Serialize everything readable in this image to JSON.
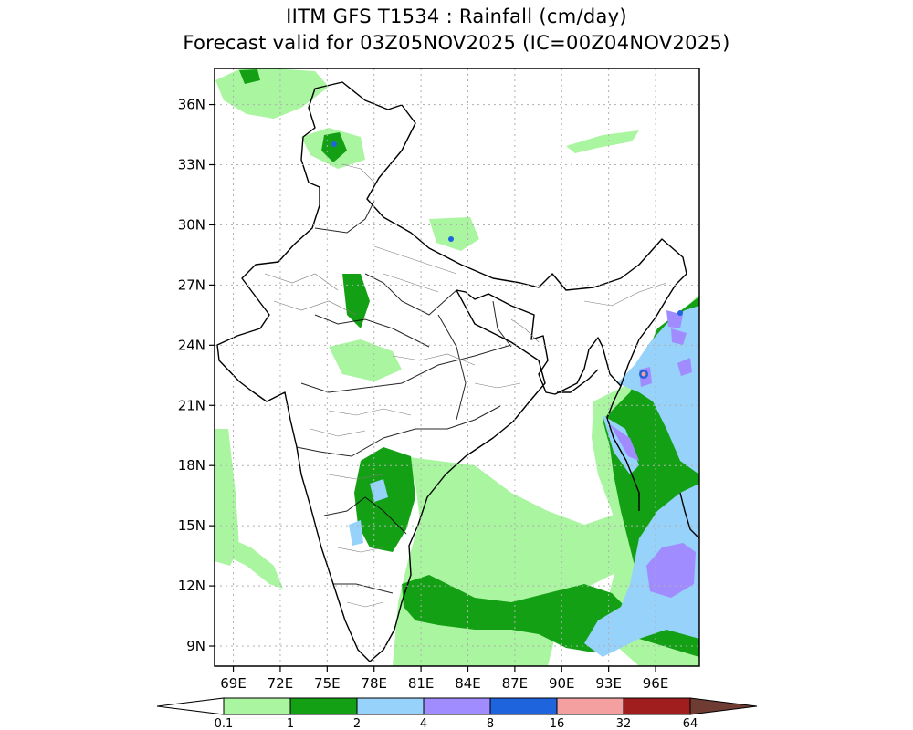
{
  "title": {
    "line1": "IITM GFS T1534 : Rainfall (cm/day)",
    "line2": "Forecast valid for 03Z05NOV2025 (IC=00Z04NOV2025)"
  },
  "map": {
    "lon_range": [
      67.8,
      98.8
    ],
    "lat_range": [
      8.0,
      37.8
    ],
    "x_ticks": [
      "69E",
      "72E",
      "75E",
      "78E",
      "81E",
      "84E",
      "87E",
      "90E",
      "93E",
      "96E"
    ],
    "y_ticks": [
      "36N",
      "33N",
      "30N",
      "27N",
      "24N",
      "21N",
      "18N",
      "15N",
      "12N",
      "9N"
    ],
    "grid": "dotted"
  },
  "colorbar": {
    "levels": [
      "0.1",
      "1",
      "2",
      "4",
      "8",
      "16",
      "32",
      "64"
    ],
    "colors": [
      "#ffffff",
      "#aaf5a0",
      "#14a014",
      "#96d2fa",
      "#a08cff",
      "#1e64dc",
      "#f5a0a0",
      "#a01e1e",
      "#6e3c32"
    ]
  }
}
